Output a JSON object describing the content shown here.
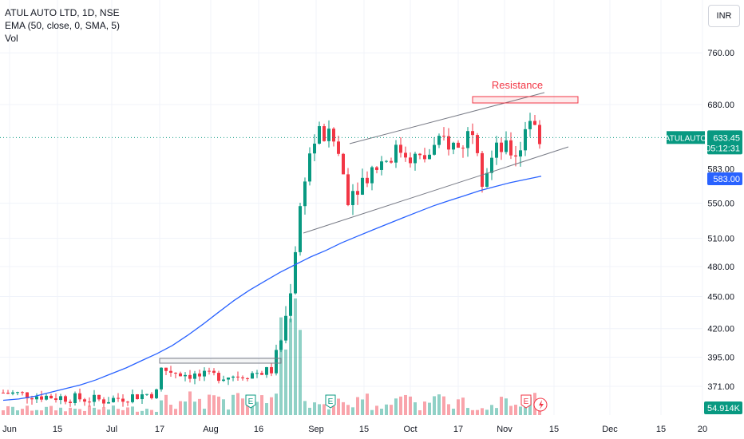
{
  "legend": {
    "symbol_line": "ATUL AUTO LTD, 1D, NSE",
    "ema_line": "EMA (50, close, 0, SMA, 5)",
    "vol_line": "Vol"
  },
  "currency": "INR",
  "price_tag": {
    "symbol": "ATULAUTO",
    "price": "633.45",
    "countdown": "05:12:31",
    "color": "#089981"
  },
  "ema_tag": {
    "value": "583.00",
    "color": "#2962ff"
  },
  "volume_tag": {
    "value": "54.914K",
    "color": "#089981"
  },
  "colors": {
    "up": "#089981",
    "down": "#f23645",
    "ema": "#2962ff",
    "annotation": "#f23645",
    "trendline": "#787b86"
  },
  "annotation": {
    "label": "Resistance"
  },
  "event_markers": [
    "E",
    "E",
    "E"
  ],
  "chart_data": {
    "type": "candlestick",
    "title": "ATUL AUTO LTD, 1D, NSE",
    "y_axis": {
      "scale": "log",
      "ticks": [
        371,
        395,
        420,
        450,
        480,
        510,
        550,
        583,
        633.45,
        680,
        760
      ],
      "tick_labels": [
        "371.00",
        "395.00",
        "420.00",
        "450.00",
        "480.00",
        "510.00",
        "550.00",
        "583.00",
        "633.45",
        "680.00",
        "760.00"
      ]
    },
    "x_axis": {
      "tick_labels": [
        "Jun",
        "15",
        "Jul",
        "17",
        "Aug",
        "16",
        "Sep",
        "15",
        "Oct",
        "17",
        "Nov",
        "15",
        "Dec",
        "15",
        "20"
      ]
    },
    "last_price": 633.45,
    "series": [
      {
        "name": "EMA (50, close, 0, SMA, 5)",
        "type": "line",
        "values": [
          360,
          361,
          363,
          366,
          369,
          372,
          376,
          381,
          386,
          392,
          398,
          405,
          414,
          424,
          435,
          446,
          456,
          465,
          474,
          482,
          490,
          497,
          505,
          512,
          519,
          526,
          533,
          540,
          547,
          553,
          559,
          565,
          570,
          575,
          579,
          583
        ]
      }
    ]
  }
}
